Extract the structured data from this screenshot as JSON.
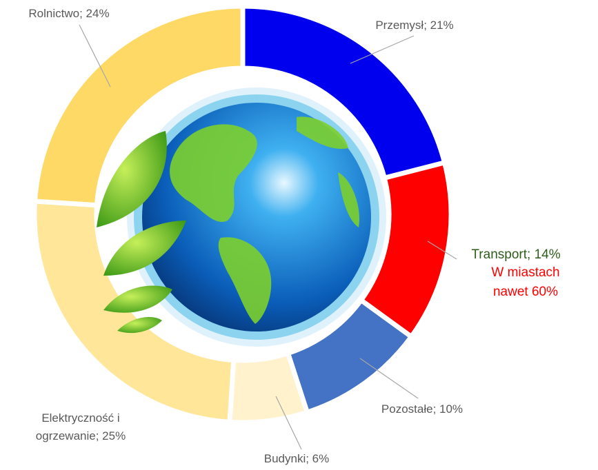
{
  "chart_data": {
    "type": "donut",
    "value_labels": [
      "Przemysł; 21%",
      "Transport; 14%",
      "Pozostałe; 10%",
      "Budynki; 6%",
      "Elektryczność i ogrzewanie; 25%",
      "Rolnictwo; 24%"
    ],
    "values": [
      21,
      14,
      10,
      6,
      25,
      24
    ],
    "colors": [
      "#0000ee",
      "#ff0000",
      "#4472c4",
      "#fff2cc",
      "#ffe699",
      "#ffd966"
    ],
    "annotation": "W miastach nawet 60%"
  }
}
